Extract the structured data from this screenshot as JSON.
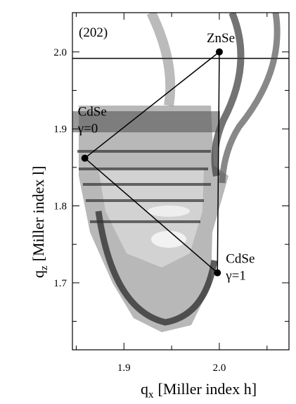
{
  "chart_data": {
    "type": "scatter",
    "panel_label": "(202)",
    "x_label": {
      "symbol": "q",
      "subscript": "x",
      "text": "[Miller index h]"
    },
    "y_label": {
      "symbol": "q",
      "subscript": "z",
      "text": "[Miller index l]"
    },
    "xlim": [
      1.846,
      2.073
    ],
    "ylim": [
      1.613,
      2.051
    ],
    "xticks": [
      1.9,
      {
        "value": 2,
        "label": "2.0"
      }
    ],
    "xminorticks": [
      1.85,
      1.95,
      2.05
    ],
    "yticks": [
      1.7,
      1.8,
      1.9,
      {
        "value": 2,
        "label": "2.0"
      }
    ],
    "yminorticks": [
      1.65,
      1.75,
      1.85,
      1.95
    ],
    "x": [
      2.0,
      1.859,
      1.998
    ],
    "y": [
      2.0,
      1.862,
      1.713
    ],
    "point_labels": [
      [
        "ZnSe"
      ],
      [
        "CdSe",
        "γ=0"
      ],
      [
        "CdSe",
        "γ=1"
      ]
    ],
    "color": "#000000"
  }
}
